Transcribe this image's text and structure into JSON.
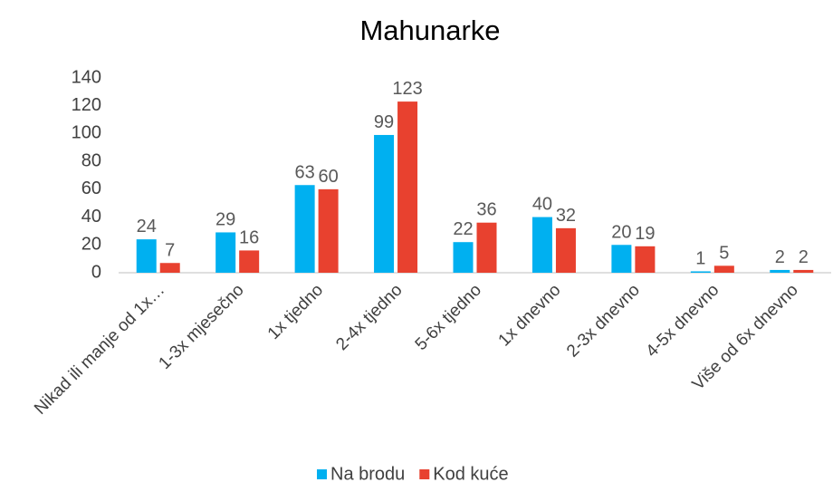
{
  "chart_data": {
    "type": "bar",
    "title": "Mahunarke",
    "categories": [
      "Nikad ili manje od 1x…",
      "1-3x mjesečno",
      "1x tjedno",
      "2-4x tjedno",
      "5-6x tjedno",
      "1x dnevno",
      "2-3x dnevno",
      "4-5x dnevno",
      "Više od 6x dnevno"
    ],
    "series": [
      {
        "name": "Na brodu",
        "color": "#00b0f0",
        "values": [
          24,
          29,
          63,
          99,
          22,
          40,
          20,
          1,
          2
        ]
      },
      {
        "name": "Kod kuće",
        "color": "#e8412f",
        "values": [
          7,
          16,
          60,
          123,
          36,
          32,
          19,
          5,
          2
        ]
      }
    ],
    "ylim": [
      0,
      140
    ],
    "yticks": [
      0,
      20,
      40,
      60,
      80,
      100,
      120,
      140
    ],
    "grid": false,
    "legend": "bottom"
  }
}
